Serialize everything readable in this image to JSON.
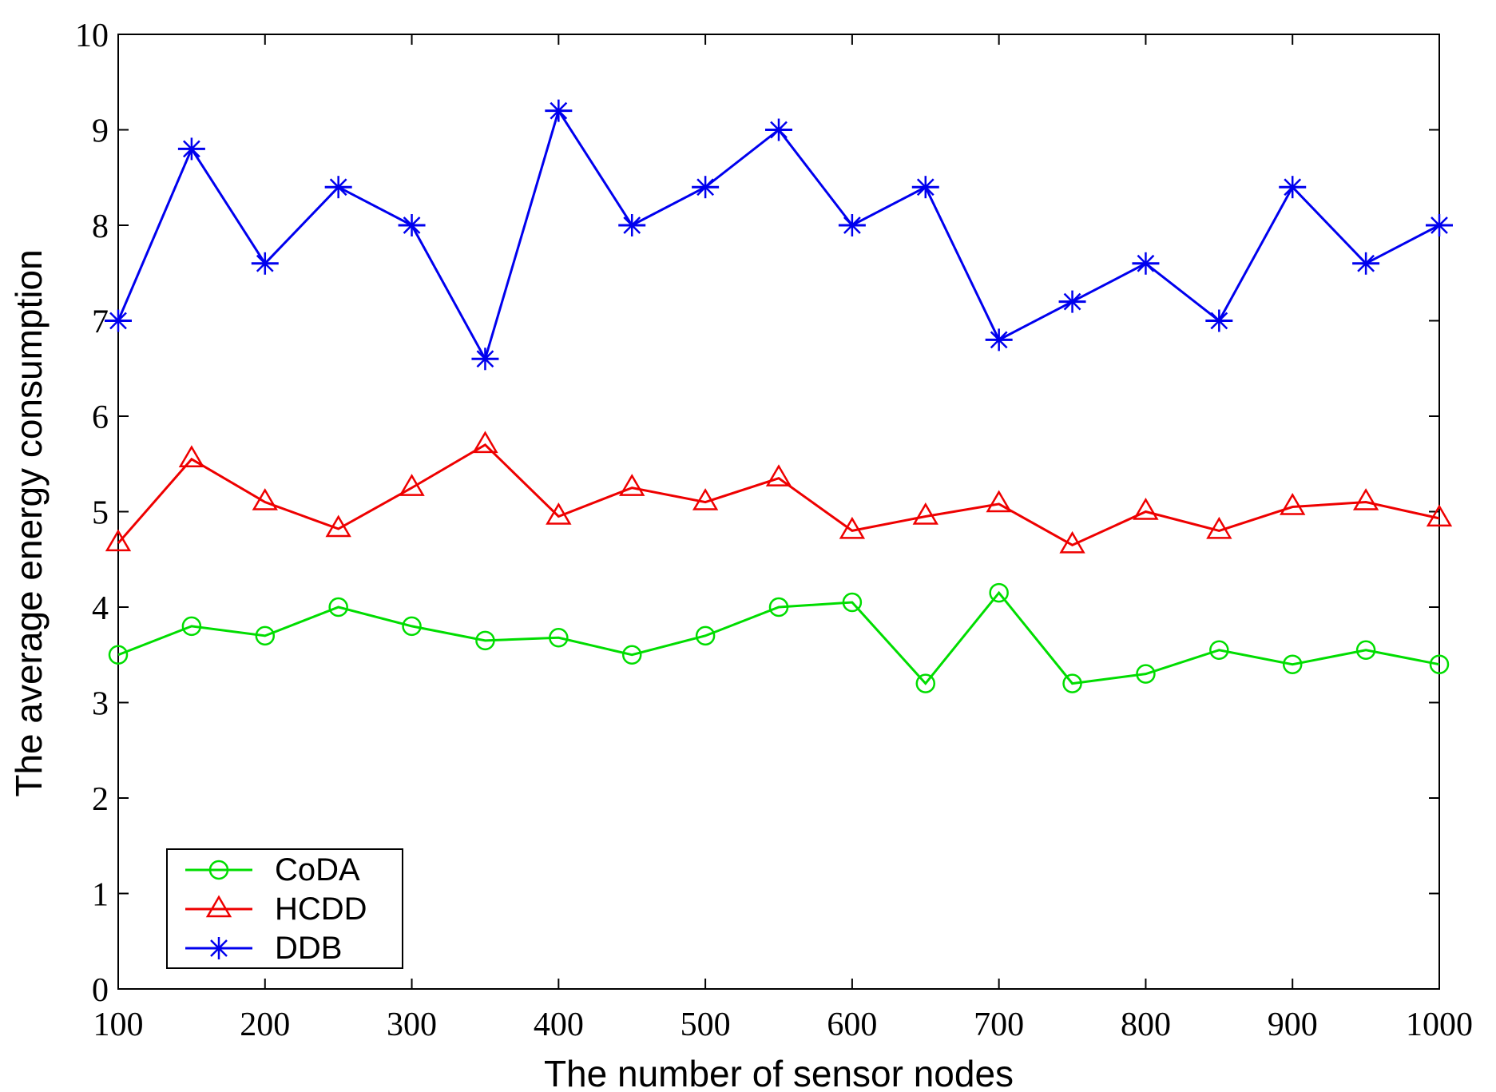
{
  "chart_data": {
    "type": "line",
    "title": "",
    "xlabel": "The number of sensor nodes",
    "ylabel": "The average energy consumption",
    "xlim": [
      100,
      1000
    ],
    "ylim": [
      0,
      10
    ],
    "xticks": [
      100,
      200,
      300,
      400,
      500,
      600,
      700,
      800,
      900,
      1000
    ],
    "yticks": [
      0,
      1,
      2,
      3,
      4,
      5,
      6,
      7,
      8,
      9,
      10
    ],
    "grid": false,
    "frame": true,
    "frame_color": "#000000",
    "legend_position": "lower-left",
    "x": [
      100,
      150,
      200,
      250,
      300,
      350,
      400,
      450,
      500,
      550,
      600,
      650,
      700,
      750,
      800,
      850,
      900,
      950,
      1000
    ],
    "series": [
      {
        "name": "CoDA",
        "color": "#00dd00",
        "marker": "circle",
        "values": [
          3.5,
          3.8,
          3.7,
          4.0,
          3.8,
          3.65,
          3.68,
          3.5,
          3.7,
          4.0,
          4.05,
          3.2,
          4.15,
          3.2,
          3.3,
          3.55,
          3.4,
          3.55,
          3.4
        ]
      },
      {
        "name": "HCDD",
        "color": "#ee0000",
        "marker": "triangle",
        "values": [
          4.67,
          5.55,
          5.1,
          4.82,
          5.25,
          5.7,
          4.95,
          5.25,
          5.1,
          5.35,
          4.8,
          4.95,
          5.08,
          4.65,
          5.0,
          4.8,
          5.05,
          5.1,
          4.93
        ]
      },
      {
        "name": "DDB",
        "color": "#0000ee",
        "marker": "asterisk",
        "values": [
          7.0,
          8.8,
          7.6,
          8.4,
          8.0,
          6.6,
          9.2,
          8.0,
          8.4,
          9.0,
          8.0,
          8.4,
          6.8,
          7.2,
          7.6,
          7.0,
          8.4,
          7.6,
          8.0
        ]
      }
    ]
  }
}
